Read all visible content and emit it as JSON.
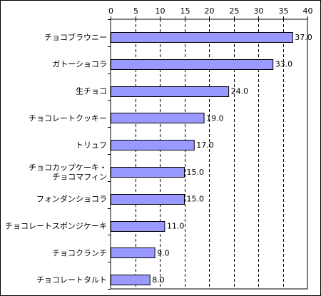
{
  "chart_data": {
    "type": "bar",
    "orientation": "horizontal",
    "categories": [
      [
        "チョコブラウニー"
      ],
      [
        "ガトーショコラ"
      ],
      [
        "生チョコ"
      ],
      [
        "チョコレートクッキー"
      ],
      [
        "トリュフ"
      ],
      [
        "チョコカップケーキ・",
        "チョコマフィン"
      ],
      [
        "フォンダンショコラ"
      ],
      [
        "チョコレートスポンジケーキ"
      ],
      [
        "チョコクランチ"
      ],
      [
        "チョコレートタルト"
      ]
    ],
    "values": [
      37.0,
      33.0,
      24.0,
      19.0,
      17.0,
      15.0,
      15.0,
      11.0,
      9.0,
      8.0
    ],
    "value_labels": [
      "37.0",
      "33.0",
      "24.0",
      "19.0",
      "17.0",
      "15.0",
      "15.0",
      "11.0",
      "9.0",
      "8.0"
    ],
    "xlim": [
      0,
      40
    ],
    "xticks": [
      0,
      5,
      10,
      15,
      20,
      25,
      30,
      35,
      40
    ],
    "x_axis_position": "top",
    "grid": "vertical dashed",
    "colors": {
      "bar_fill": "#9999ff",
      "bar_stroke": "#000000",
      "grid": "#000000",
      "axis": "#000000"
    }
  }
}
